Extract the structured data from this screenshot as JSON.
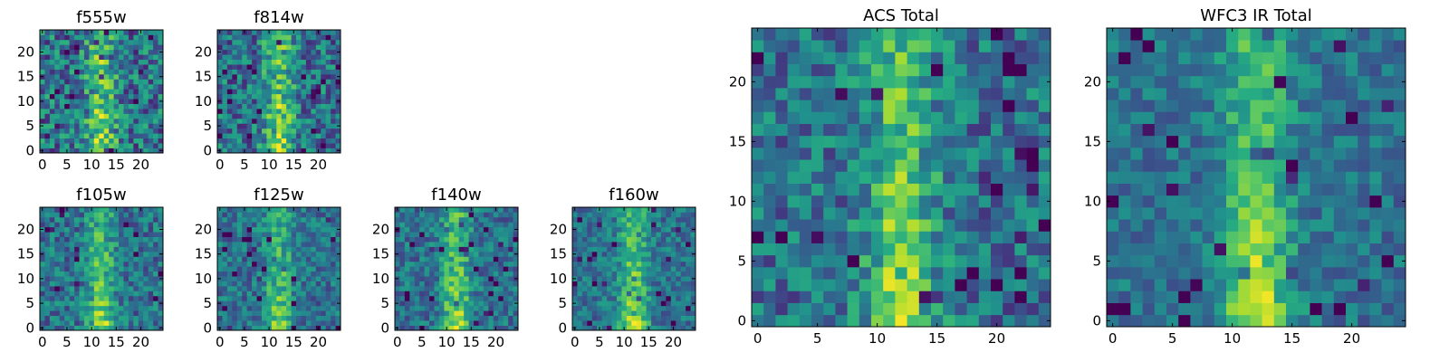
{
  "figure": {
    "background": "#ffffff"
  },
  "chart_data": [
    {
      "type": "heatmap",
      "title": "f555w",
      "grid_size": 25,
      "noise": 0.3,
      "signal": 0.55,
      "xticks": [
        0,
        5,
        10,
        15,
        20
      ],
      "yticks": [
        0,
        5,
        10,
        15,
        20
      ],
      "xtick_labels": [
        "0",
        "5",
        "10",
        "15",
        "20"
      ],
      "ytick_labels": [
        "0",
        "5",
        "10",
        "15",
        "20"
      ],
      "xlim": [
        -0.5,
        24.5
      ],
      "ylim": [
        -0.5,
        24.5
      ],
      "colormap": "viridis"
    },
    {
      "type": "heatmap",
      "title": "f814w",
      "grid_size": 25,
      "noise": 0.28,
      "signal": 0.55,
      "xticks": [
        0,
        5,
        10,
        15,
        20
      ],
      "yticks": [
        0,
        5,
        10,
        15,
        20
      ],
      "xtick_labels": [
        "0",
        "5",
        "10",
        "15",
        "20"
      ],
      "ytick_labels": [
        "0",
        "5",
        "10",
        "15",
        "20"
      ],
      "xlim": [
        -0.5,
        24.5
      ],
      "ylim": [
        -0.5,
        24.5
      ],
      "colormap": "viridis"
    },
    {
      "type": "heatmap",
      "title": "f105w",
      "grid_size": 25,
      "noise": 0.22,
      "signal": 0.5,
      "xticks": [
        0,
        5,
        10,
        15,
        20
      ],
      "yticks": [
        0,
        5,
        10,
        15,
        20
      ],
      "xtick_labels": [
        "0",
        "5",
        "10",
        "15",
        "20"
      ],
      "ytick_labels": [
        "0",
        "5",
        "10",
        "15",
        "20"
      ],
      "xlim": [
        -0.5,
        24.5
      ],
      "ylim": [
        -0.5,
        24.5
      ],
      "colormap": "viridis"
    },
    {
      "type": "heatmap",
      "title": "f125w",
      "grid_size": 25,
      "noise": 0.2,
      "signal": 0.45,
      "xticks": [
        0,
        5,
        10,
        15,
        20
      ],
      "yticks": [
        0,
        5,
        10,
        15,
        20
      ],
      "xtick_labels": [
        "0",
        "5",
        "10",
        "15",
        "20"
      ],
      "ytick_labels": [
        "0",
        "5",
        "10",
        "15",
        "20"
      ],
      "xlim": [
        -0.5,
        24.5
      ],
      "ylim": [
        -0.5,
        24.5
      ],
      "colormap": "viridis"
    },
    {
      "type": "heatmap",
      "title": "f140w",
      "grid_size": 25,
      "noise": 0.2,
      "signal": 0.55,
      "xticks": [
        0,
        5,
        10,
        15,
        20
      ],
      "yticks": [
        0,
        5,
        10,
        15,
        20
      ],
      "xtick_labels": [
        "0",
        "5",
        "10",
        "15",
        "20"
      ],
      "ytick_labels": [
        "0",
        "5",
        "10",
        "15",
        "20"
      ],
      "xlim": [
        -0.5,
        24.5
      ],
      "ylim": [
        -0.5,
        24.5
      ],
      "colormap": "viridis"
    },
    {
      "type": "heatmap",
      "title": "f160w",
      "grid_size": 25,
      "noise": 0.18,
      "signal": 0.6,
      "xticks": [
        0,
        5,
        10,
        15,
        20
      ],
      "yticks": [
        0,
        5,
        10,
        15,
        20
      ],
      "xtick_labels": [
        "0",
        "5",
        "10",
        "15",
        "20"
      ],
      "ytick_labels": [
        "0",
        "5",
        "10",
        "15",
        "20"
      ],
      "xlim": [
        -0.5,
        24.5
      ],
      "ylim": [
        -0.5,
        24.5
      ],
      "colormap": "viridis"
    },
    {
      "type": "heatmap",
      "title": "ACS Total",
      "grid_size": 25,
      "noise": 0.24,
      "signal": 0.55,
      "xticks": [
        0,
        5,
        10,
        15,
        20
      ],
      "yticks": [
        0,
        5,
        10,
        15,
        20
      ],
      "xtick_labels": [
        "0",
        "5",
        "10",
        "15",
        "20"
      ],
      "ytick_labels": [
        "0",
        "5",
        "10",
        "15",
        "20"
      ],
      "xlim": [
        -0.5,
        24.5
      ],
      "ylim": [
        -0.5,
        24.5
      ],
      "colormap": "viridis"
    },
    {
      "type": "heatmap",
      "title": "WFC3 IR Total",
      "grid_size": 25,
      "noise": 0.16,
      "signal": 0.6,
      "xticks": [
        0,
        5,
        10,
        15,
        20
      ],
      "yticks": [
        0,
        5,
        10,
        15,
        20
      ],
      "xtick_labels": [
        "0",
        "5",
        "10",
        "15",
        "20"
      ],
      "ytick_labels": [
        "0",
        "5",
        "10",
        "15",
        "20"
      ],
      "xlim": [
        -0.5,
        24.5
      ],
      "ylim": [
        -0.5,
        24.5
      ],
      "colormap": "viridis"
    }
  ]
}
